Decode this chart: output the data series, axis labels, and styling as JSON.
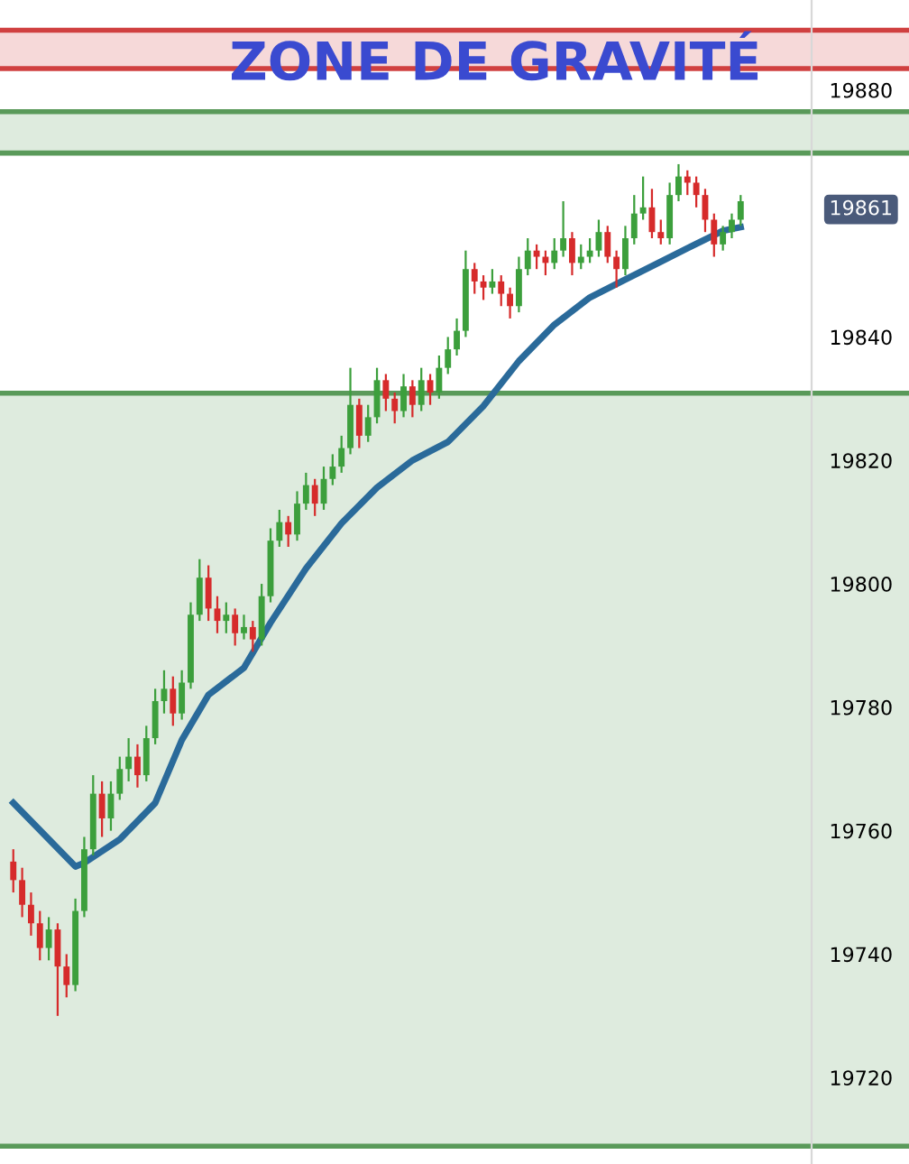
{
  "chart_data": {
    "type": "candlestick",
    "categories": [
      null,
      null,
      null,
      null,
      null,
      null,
      null,
      null,
      null,
      null,
      null,
      null,
      null,
      null,
      null,
      null,
      null,
      null,
      null,
      null,
      null,
      null,
      null,
      null,
      null,
      null,
      null,
      null,
      null,
      null,
      null,
      null,
      null,
      null,
      null,
      null,
      null,
      null,
      null,
      null,
      null,
      null,
      null,
      null,
      null,
      null,
      null,
      null,
      null,
      null,
      null,
      null,
      null,
      null,
      null,
      null,
      null,
      null,
      null,
      null,
      null,
      null,
      null,
      null,
      null,
      null,
      null,
      null,
      null,
      null,
      null,
      null,
      null,
      null,
      null,
      null,
      null,
      null,
      null,
      null,
      null,
      null,
      null
    ],
    "colors": [
      "#d62b2b",
      "#d62b2b",
      "#d62b2b",
      "#d62b2b",
      "#3c9f3c",
      "#d62b2b",
      "#d62b2b",
      "#3c9f3c",
      "#3c9f3c",
      "#3c9f3c",
      "#d62b2b",
      "#3c9f3c",
      "#3c9f3c",
      "#3c9f3c",
      "#d62b2b",
      "#3c9f3c",
      "#3c9f3c",
      "#3c9f3c",
      "#d62b2b",
      "#3c9f3c",
      "#3c9f3c",
      "#3c9f3c",
      "#d62b2b",
      "#d62b2b",
      "#3c9f3c",
      "#d62b2b",
      "#3c9f3c",
      "#d62b2b",
      "#3c9f3c",
      "#3c9f3c",
      "#3c9f3c",
      "#d62b2b",
      "#3c9f3c",
      "#3c9f3c",
      "#d62b2b",
      "#3c9f3c",
      "#3c9f3c",
      "#3c9f3c",
      "#3c9f3c",
      "#d62b2b",
      "#3c9f3c",
      "#3c9f3c",
      "#d62b2b",
      "#d62b2b",
      "#3c9f3c",
      "#d62b2b",
      "#3c9f3c",
      "#d62b2b",
      "#3c9f3c",
      "#3c9f3c",
      "#3c9f3c",
      "#3c9f3c",
      "#d62b2b",
      "#d62b2b",
      "#3c9f3c",
      "#d62b2b",
      "#d62b2b",
      "#3c9f3c",
      "#3c9f3c",
      "#d62b2b",
      "#d62b2b",
      "#3c9f3c",
      "#3c9f3c",
      "#d62b2b",
      "#3c9f3c",
      "#3c9f3c",
      "#3c9f3c",
      "#d62b2b",
      "#d62b2b",
      "#3c9f3c",
      "#3c9f3c",
      "#3c9f3c",
      "#d62b2b",
      "#d62b2b",
      "#3c9f3c",
      "#3c9f3c",
      "#d62b2b",
      "#d62b2b",
      "#d62b2b",
      "#d62b2b",
      "#3c9f3c",
      "#3c9f3c",
      "#3c9f3c"
    ],
    "ohlc": [
      [
        19755,
        19757,
        19750,
        19752
      ],
      [
        19752,
        19754,
        19746,
        19748
      ],
      [
        19748,
        19750,
        19743,
        19745
      ],
      [
        19745,
        19747,
        19739,
        19741
      ],
      [
        19741,
        19746,
        19739,
        19744
      ],
      [
        19744,
        19745,
        19730,
        19738
      ],
      [
        19738,
        19740,
        19733,
        19735
      ],
      [
        19735,
        19749,
        19734,
        19747
      ],
      [
        19747,
        19759,
        19746,
        19757
      ],
      [
        19757,
        19769,
        19756,
        19766
      ],
      [
        19766,
        19768,
        19759,
        19762
      ],
      [
        19762,
        19768,
        19760,
        19766
      ],
      [
        19766,
        19772,
        19765,
        19770
      ],
      [
        19770,
        19775,
        19768,
        19772
      ],
      [
        19772,
        19774,
        19767,
        19769
      ],
      [
        19769,
        19777,
        19768,
        19775
      ],
      [
        19775,
        19783,
        19774,
        19781
      ],
      [
        19781,
        19786,
        19779,
        19783
      ],
      [
        19783,
        19785,
        19777,
        19779
      ],
      [
        19779,
        19786,
        19778,
        19784
      ],
      [
        19784,
        19797,
        19783,
        19795
      ],
      [
        19795,
        19804,
        19794,
        19801
      ],
      [
        19801,
        19803,
        19794,
        19796
      ],
      [
        19796,
        19798,
        19792,
        19794
      ],
      [
        19794,
        19797,
        19792,
        19795
      ],
      [
        19795,
        19796,
        19790,
        19792
      ],
      [
        19792,
        19795,
        19791,
        19793
      ],
      [
        19793,
        19794,
        19789,
        19791
      ],
      [
        19791,
        19800,
        19790,
        19798
      ],
      [
        19798,
        19809,
        19797,
        19807
      ],
      [
        19807,
        19812,
        19806,
        19810
      ],
      [
        19810,
        19811,
        19806,
        19808
      ],
      [
        19808,
        19815,
        19807,
        19813
      ],
      [
        19813,
        19818,
        19812,
        19816
      ],
      [
        19816,
        19817,
        19811,
        19813
      ],
      [
        19813,
        19819,
        19812,
        19817
      ],
      [
        19817,
        19821,
        19816,
        19819
      ],
      [
        19819,
        19824,
        19818,
        19822
      ],
      [
        19822,
        19835,
        19821,
        19829
      ],
      [
        19829,
        19830,
        19822,
        19824
      ],
      [
        19824,
        19829,
        19823,
        19827
      ],
      [
        19827,
        19835,
        19826,
        19833
      ],
      [
        19833,
        19834,
        19828,
        19830
      ],
      [
        19830,
        19831,
        19826,
        19828
      ],
      [
        19828,
        19834,
        19827,
        19832
      ],
      [
        19832,
        19833,
        19827,
        19829
      ],
      [
        19829,
        19835,
        19828,
        19833
      ],
      [
        19833,
        19834,
        19829,
        19831
      ],
      [
        19831,
        19837,
        19830,
        19835
      ],
      [
        19835,
        19840,
        19834,
        19838
      ],
      [
        19838,
        19843,
        19837,
        19841
      ],
      [
        19841,
        19854,
        19840,
        19851
      ],
      [
        19851,
        19852,
        19847,
        19849
      ],
      [
        19849,
        19850,
        19846,
        19848
      ],
      [
        19848,
        19851,
        19847,
        19849
      ],
      [
        19849,
        19850,
        19845,
        19847
      ],
      [
        19847,
        19848,
        19843,
        19845
      ],
      [
        19845,
        19853,
        19844,
        19851
      ],
      [
        19851,
        19856,
        19850,
        19854
      ],
      [
        19854,
        19855,
        19851,
        19853
      ],
      [
        19853,
        19854,
        19850,
        19852
      ],
      [
        19852,
        19856,
        19851,
        19854
      ],
      [
        19854,
        19862,
        19853,
        19856
      ],
      [
        19856,
        19857,
        19850,
        19852
      ],
      [
        19852,
        19855,
        19851,
        19853
      ],
      [
        19853,
        19856,
        19852,
        19854
      ],
      [
        19854,
        19859,
        19853,
        19857
      ],
      [
        19857,
        19858,
        19852,
        19853
      ],
      [
        19853,
        19854,
        19848,
        19851
      ],
      [
        19851,
        19858,
        19850,
        19856
      ],
      [
        19856,
        19863,
        19855,
        19860
      ],
      [
        19860,
        19866,
        19859,
        19861
      ],
      [
        19861,
        19864,
        19856,
        19857
      ],
      [
        19857,
        19859,
        19855,
        19856
      ],
      [
        19856,
        19865,
        19855,
        19863
      ],
      [
        19863,
        19868,
        19862,
        19866
      ],
      [
        19866,
        19867,
        19863,
        19865
      ],
      [
        19865,
        19866,
        19861,
        19863
      ],
      [
        19863,
        19864,
        19857,
        19859
      ],
      [
        19859,
        19860,
        19853,
        19855
      ],
      [
        19855,
        19858,
        19854,
        19857
      ],
      [
        19857,
        19860,
        19856,
        19859
      ],
      [
        19859,
        19863,
        19858,
        19862
      ]
    ],
    "series": [
      {
        "type": "line",
        "color": "#2a6a9a",
        "values": [
          19764.5,
          null,
          null,
          null,
          null,
          null,
          null,
          19754.2,
          19754.8,
          null,
          null,
          null,
          19758.6,
          null,
          null,
          null,
          19764.5,
          null,
          null,
          19774.7,
          null,
          null,
          19782.0,
          null,
          null,
          null,
          19786.4,
          null,
          null,
          19793.7,
          null,
          null,
          null,
          19802.5,
          null,
          null,
          null,
          19809.8,
          null,
          null,
          null,
          19815.6,
          null,
          null,
          null,
          19820.0,
          null,
          null,
          null,
          19823.0,
          null,
          null,
          null,
          19828.8,
          null,
          null,
          null,
          19836.1,
          null,
          null,
          null,
          19842.0,
          null,
          null,
          null,
          19846.4,
          null,
          null,
          null,
          19849.3,
          null,
          null,
          null,
          19852.2,
          null,
          null,
          null,
          19855.1,
          null,
          null,
          19857.2,
          null,
          19857.8
        ]
      }
    ],
    "ylim": [
      19706,
      19894.6
    ],
    "yticks": [
      19720,
      19740,
      19760,
      19780,
      19800,
      19820,
      19840,
      {
        "value": 19861,
        "label": "19861"
      },
      19880
    ],
    "bands": [
      {
        "axis": "y",
        "from": 19883.5,
        "to": 19889.7,
        "color": "#d04040"
      },
      {
        "axis": "y",
        "from": 19869.8,
        "to": 19876.5,
        "color": "#5a9a5a"
      },
      {
        "axis": "y",
        "from": 19708.9,
        "to": 19830.9,
        "color": "#5a9a5a"
      }
    ],
    "annotations": [
      "ZONE DE GRAVITÉ"
    ],
    "grid": false
  }
}
